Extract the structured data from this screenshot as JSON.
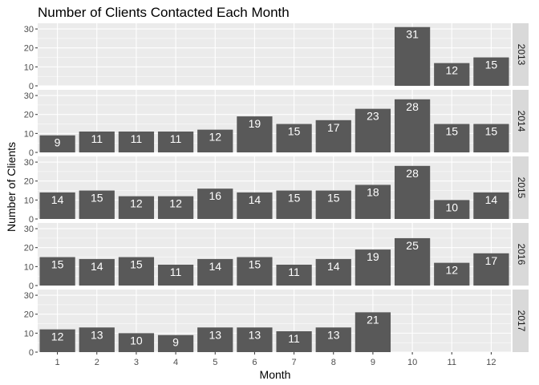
{
  "chart_data": {
    "type": "bar",
    "title": "Number of Clients Contacted Each Month",
    "xlabel": "Month",
    "ylabel": "Number of Clients",
    "categories": [
      1,
      2,
      3,
      4,
      5,
      6,
      7,
      8,
      9,
      10,
      11,
      12
    ],
    "ylim": [
      0,
      33
    ],
    "yticks": [
      0,
      10,
      20,
      30
    ],
    "facet_position": "right",
    "grid": true,
    "data_labels": true,
    "colors": {
      "bar": "#595959",
      "panel_bg": "#ebebeb",
      "strip_bg": "#d9d9d9",
      "grid": "#ffffff",
      "label_text": "#ffffff",
      "axis_text": "#4d4d4d"
    },
    "panels": [
      {
        "facet": "2013",
        "values": [
          null,
          null,
          null,
          null,
          null,
          null,
          null,
          null,
          null,
          31,
          12,
          15
        ]
      },
      {
        "facet": "2014",
        "values": [
          9,
          11,
          11,
          11,
          12,
          19,
          15,
          17,
          23,
          28,
          15,
          15
        ]
      },
      {
        "facet": "2015",
        "values": [
          14,
          15,
          12,
          12,
          16,
          14,
          15,
          15,
          18,
          28,
          10,
          14
        ]
      },
      {
        "facet": "2016",
        "values": [
          15,
          14,
          15,
          11,
          14,
          15,
          11,
          14,
          19,
          25,
          12,
          17
        ]
      },
      {
        "facet": "2017",
        "values": [
          12,
          13,
          10,
          9,
          13,
          13,
          11,
          13,
          21,
          null,
          null,
          null
        ]
      }
    ]
  }
}
